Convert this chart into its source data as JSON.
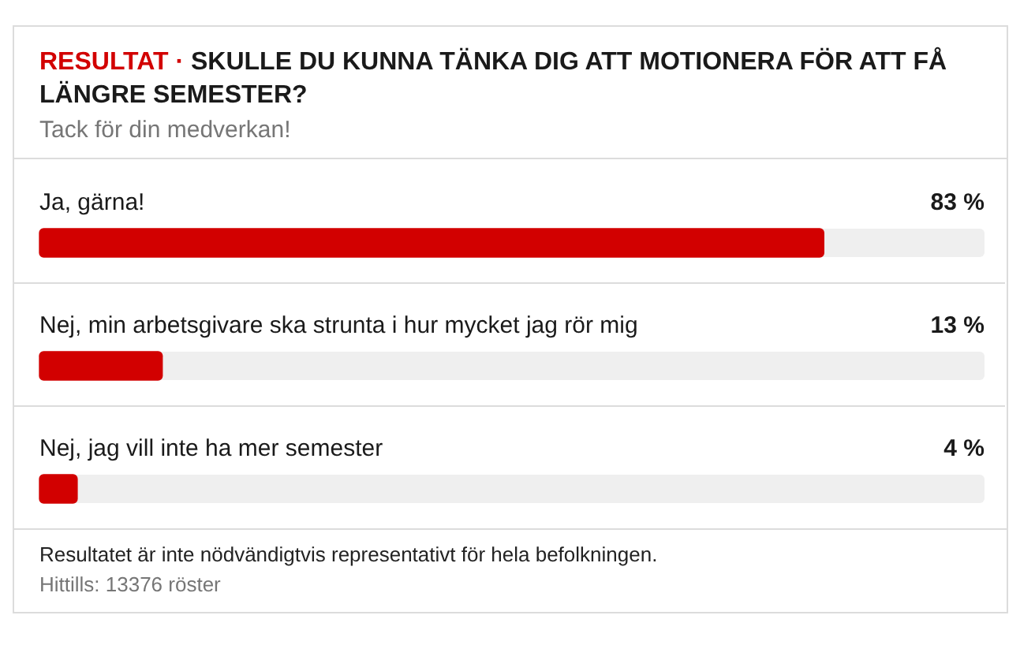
{
  "chart_data": {
    "type": "bar",
    "orientation": "horizontal",
    "title": "RESULTAT · SKULLE DU KUNNA TÄNKA DIG ATT MOTIONERA FÖR ATT FÅ LÄNGRE SEMESTER?",
    "subtitle": "Tack för din medverkan!",
    "categories": [
      "Ja, gärna!",
      "Nej, min arbetsgivare ska strunta i hur mycket jag rör mig",
      "Nej, jag vill inte ha mer semester"
    ],
    "values": [
      83,
      13,
      4
    ],
    "value_labels": [
      "83 %",
      "13 %",
      "4 %"
    ],
    "color": "#d20000",
    "xlim": [
      0,
      100
    ],
    "tick_labels": "y",
    "annotations": [
      "Resultatet är inte nödvändigtvis representativt för hela befolkningen.",
      "Hittills: 13376 röster"
    ]
  }
}
